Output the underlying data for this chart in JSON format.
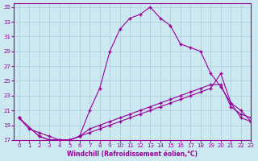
{
  "xlabel": "Windchill (Refroidissement éolien,°C)",
  "background_color": "#cce8f0",
  "grid_color": "#aaccdd",
  "line_color": "#990099",
  "xlim": [
    -0.5,
    23
  ],
  "ylim": [
    17,
    35.5
  ],
  "xticks": [
    0,
    1,
    2,
    3,
    4,
    5,
    6,
    7,
    8,
    9,
    10,
    11,
    12,
    13,
    14,
    15,
    16,
    17,
    18,
    19,
    20,
    21,
    22,
    23
  ],
  "yticks": [
    17,
    19,
    21,
    23,
    25,
    27,
    29,
    31,
    33,
    35
  ],
  "line1_x": [
    0,
    1,
    2,
    3,
    4,
    5,
    6,
    7,
    8,
    9,
    10,
    11,
    12,
    13,
    14,
    15,
    16,
    17,
    18,
    19,
    20,
    21,
    22,
    23
  ],
  "line1_y": [
    20.0,
    18.5,
    18.0,
    17.5,
    17.0,
    17.0,
    17.5,
    21.0,
    24.0,
    29.0,
    32.0,
    33.5,
    34.0,
    35.0,
    33.5,
    32.5,
    30.0,
    29.5,
    29.0,
    26.0,
    24.2,
    22.0,
    21.0,
    19.5
  ],
  "line2_x": [
    0,
    2,
    3,
    4,
    5,
    6,
    7,
    8,
    9,
    10,
    11,
    12,
    13,
    14,
    15,
    16,
    17,
    18,
    19,
    20,
    21,
    22,
    23
  ],
  "line2_y": [
    20.0,
    17.5,
    17.0,
    17.0,
    17.0,
    17.5,
    18.5,
    19.0,
    19.5,
    20.0,
    20.5,
    21.0,
    21.5,
    22.0,
    22.5,
    23.0,
    23.5,
    24.0,
    24.5,
    24.5,
    21.5,
    20.5,
    20.0
  ],
  "line3_x": [
    0,
    2,
    3,
    4,
    5,
    6,
    7,
    8,
    9,
    10,
    11,
    12,
    13,
    14,
    15,
    16,
    17,
    18,
    19,
    20,
    21,
    22,
    23
  ],
  "line3_y": [
    20.0,
    17.5,
    17.0,
    17.0,
    17.0,
    17.5,
    18.0,
    18.5,
    19.0,
    19.5,
    20.0,
    20.5,
    21.0,
    21.5,
    22.0,
    22.5,
    23.0,
    23.5,
    24.0,
    26.0,
    22.0,
    20.0,
    19.5
  ],
  "marker": "+",
  "markersize": 3.5,
  "linewidth": 0.8,
  "tick_fontsize": 5,
  "xlabel_fontsize": 5.5
}
